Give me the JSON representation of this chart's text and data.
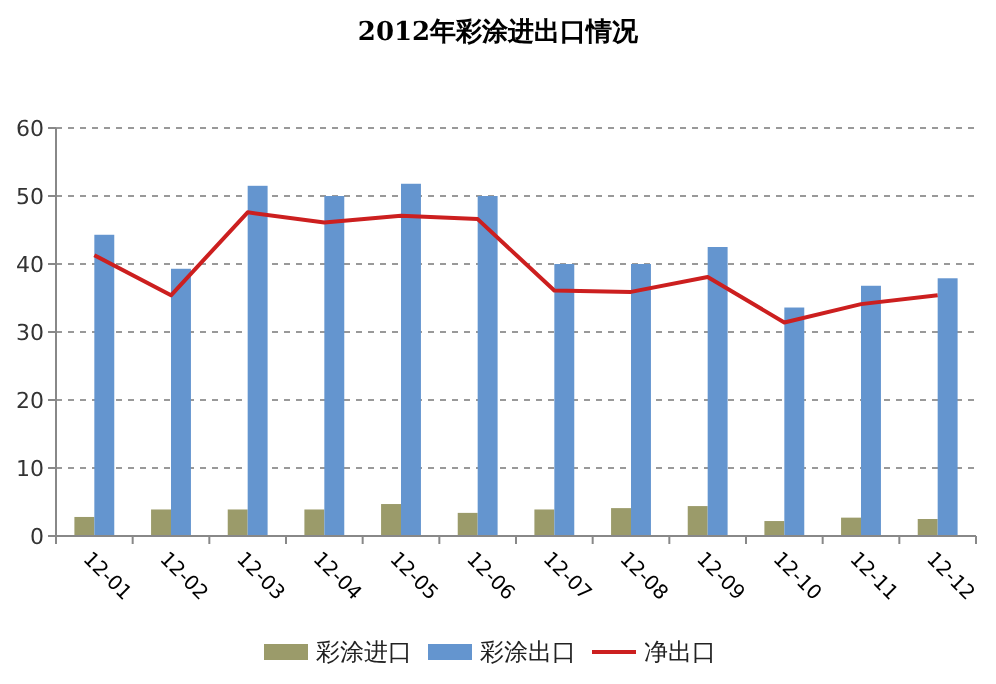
{
  "chart_data": {
    "type": "bar",
    "title": "2012年彩涂进出口情况",
    "categories": [
      "12-01",
      "12-02",
      "12-03",
      "12-04",
      "12-05",
      "12-06",
      "12-07",
      "12-08",
      "12-09",
      "12-10",
      "12-11",
      "12-12"
    ],
    "series": [
      {
        "name": "彩涂进口",
        "color": "#9b9b6a",
        "values": [
          2.8,
          3.9,
          3.9,
          3.9,
          4.7,
          3.4,
          3.9,
          4.1,
          4.4,
          2.2,
          2.7,
          2.5
        ]
      },
      {
        "name": "彩涂出口",
        "color": "#6495cf",
        "values": [
          44.3,
          39.3,
          51.5,
          50.0,
          51.8,
          50.0,
          40.0,
          40.0,
          42.5,
          33.6,
          36.8,
          37.9
        ]
      },
      {
        "name": "净出口",
        "type": "line",
        "color": "#cc1f1f",
        "values": [
          41.3,
          35.4,
          47.6,
          46.1,
          47.1,
          46.6,
          36.1,
          35.9,
          38.1,
          31.4,
          34.1,
          35.4
        ]
      }
    ],
    "ylim": [
      0,
      60
    ],
    "yticks": [
      0,
      10,
      20,
      30,
      40,
      50,
      60
    ],
    "grid": "y",
    "legend": "bottom",
    "marker": "none",
    "line_style": "solid"
  }
}
